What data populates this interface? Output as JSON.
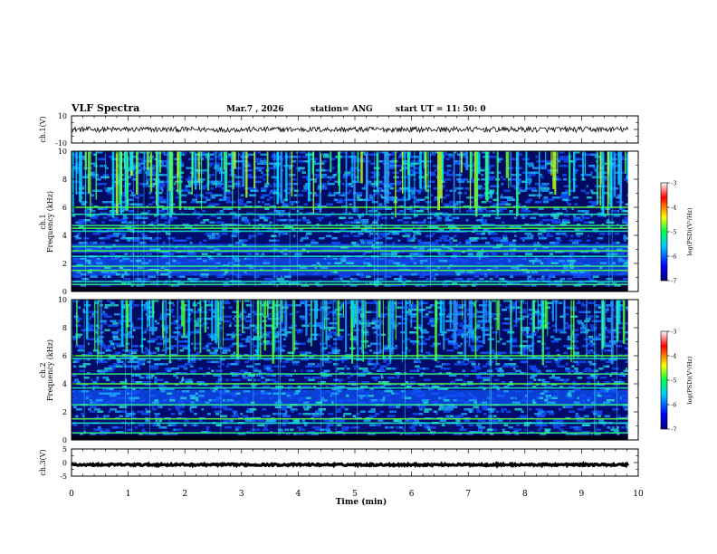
{
  "header": {
    "title": "VLF Spectra",
    "date": "Mar.7 , 2026",
    "station": "station= ANG",
    "start_ut": "start UT = 11: 50: 0"
  },
  "chart_data": [
    {
      "type": "line",
      "name": "ch1-waveform",
      "ylabel": "ch.1(V)",
      "ylim": [
        -10,
        10
      ],
      "yticks": [
        "10",
        "-10"
      ],
      "mean": 0,
      "amplitude": 2
    },
    {
      "type": "heatmap",
      "name": "ch1-spectrogram",
      "ylabel_line1": "ch.1",
      "ylabel_line2": "Frequency (kHz)",
      "ylim": [
        0,
        10
      ],
      "yticks": [
        "0",
        "2",
        "4",
        "6",
        "8",
        "10"
      ],
      "colorbar": {
        "label": "log(PSD)(V²/Hz)",
        "range": [
          -7,
          -3
        ],
        "ticks": [
          "-3",
          "-4",
          "-5",
          "-6",
          "-7"
        ]
      },
      "strong_lines_khz": [
        0.5,
        0.7,
        1.5,
        1.8,
        2.5,
        2.9,
        3.2,
        4.3,
        4.5,
        4.7,
        5.5,
        6.0
      ],
      "broad_bands_khz": [
        [
          1.2,
          2.4
        ],
        [
          2.7,
          3.4
        ]
      ]
    },
    {
      "type": "heatmap",
      "name": "ch2-spectrogram",
      "ylabel_line1": "ch.2",
      "ylabel_line2": "Frequency (kHz)",
      "ylim": [
        0,
        10
      ],
      "yticks": [
        "0",
        "2",
        "4",
        "6",
        "8",
        "10"
      ],
      "colorbar": {
        "label": "log(PSD)(V²/Hz)",
        "range": [
          -7,
          -3
        ],
        "ticks": [
          "-3",
          "-4",
          "-5",
          "-6",
          "-7"
        ]
      },
      "strong_lines_khz": [
        0.5,
        1.2,
        1.5,
        2.5,
        3.7,
        4.0,
        4.7,
        5.8,
        6.0
      ],
      "broad_bands_khz": [
        [
          2.5,
          3.5
        ]
      ]
    },
    {
      "type": "line",
      "name": "ch3-waveform",
      "ylabel": "ch.3(V)",
      "ylim": [
        -5,
        5
      ],
      "yticks": [
        "5",
        "0",
        "-5"
      ],
      "mean": -0.8,
      "amplitude": 0.35
    }
  ],
  "x_axis": {
    "label": "Time (min)",
    "range": [
      0,
      10
    ],
    "data_end": 9.82,
    "ticks": [
      "0",
      "1",
      "2",
      "3",
      "4",
      "5",
      "6",
      "7",
      "8",
      "9",
      "10"
    ]
  }
}
